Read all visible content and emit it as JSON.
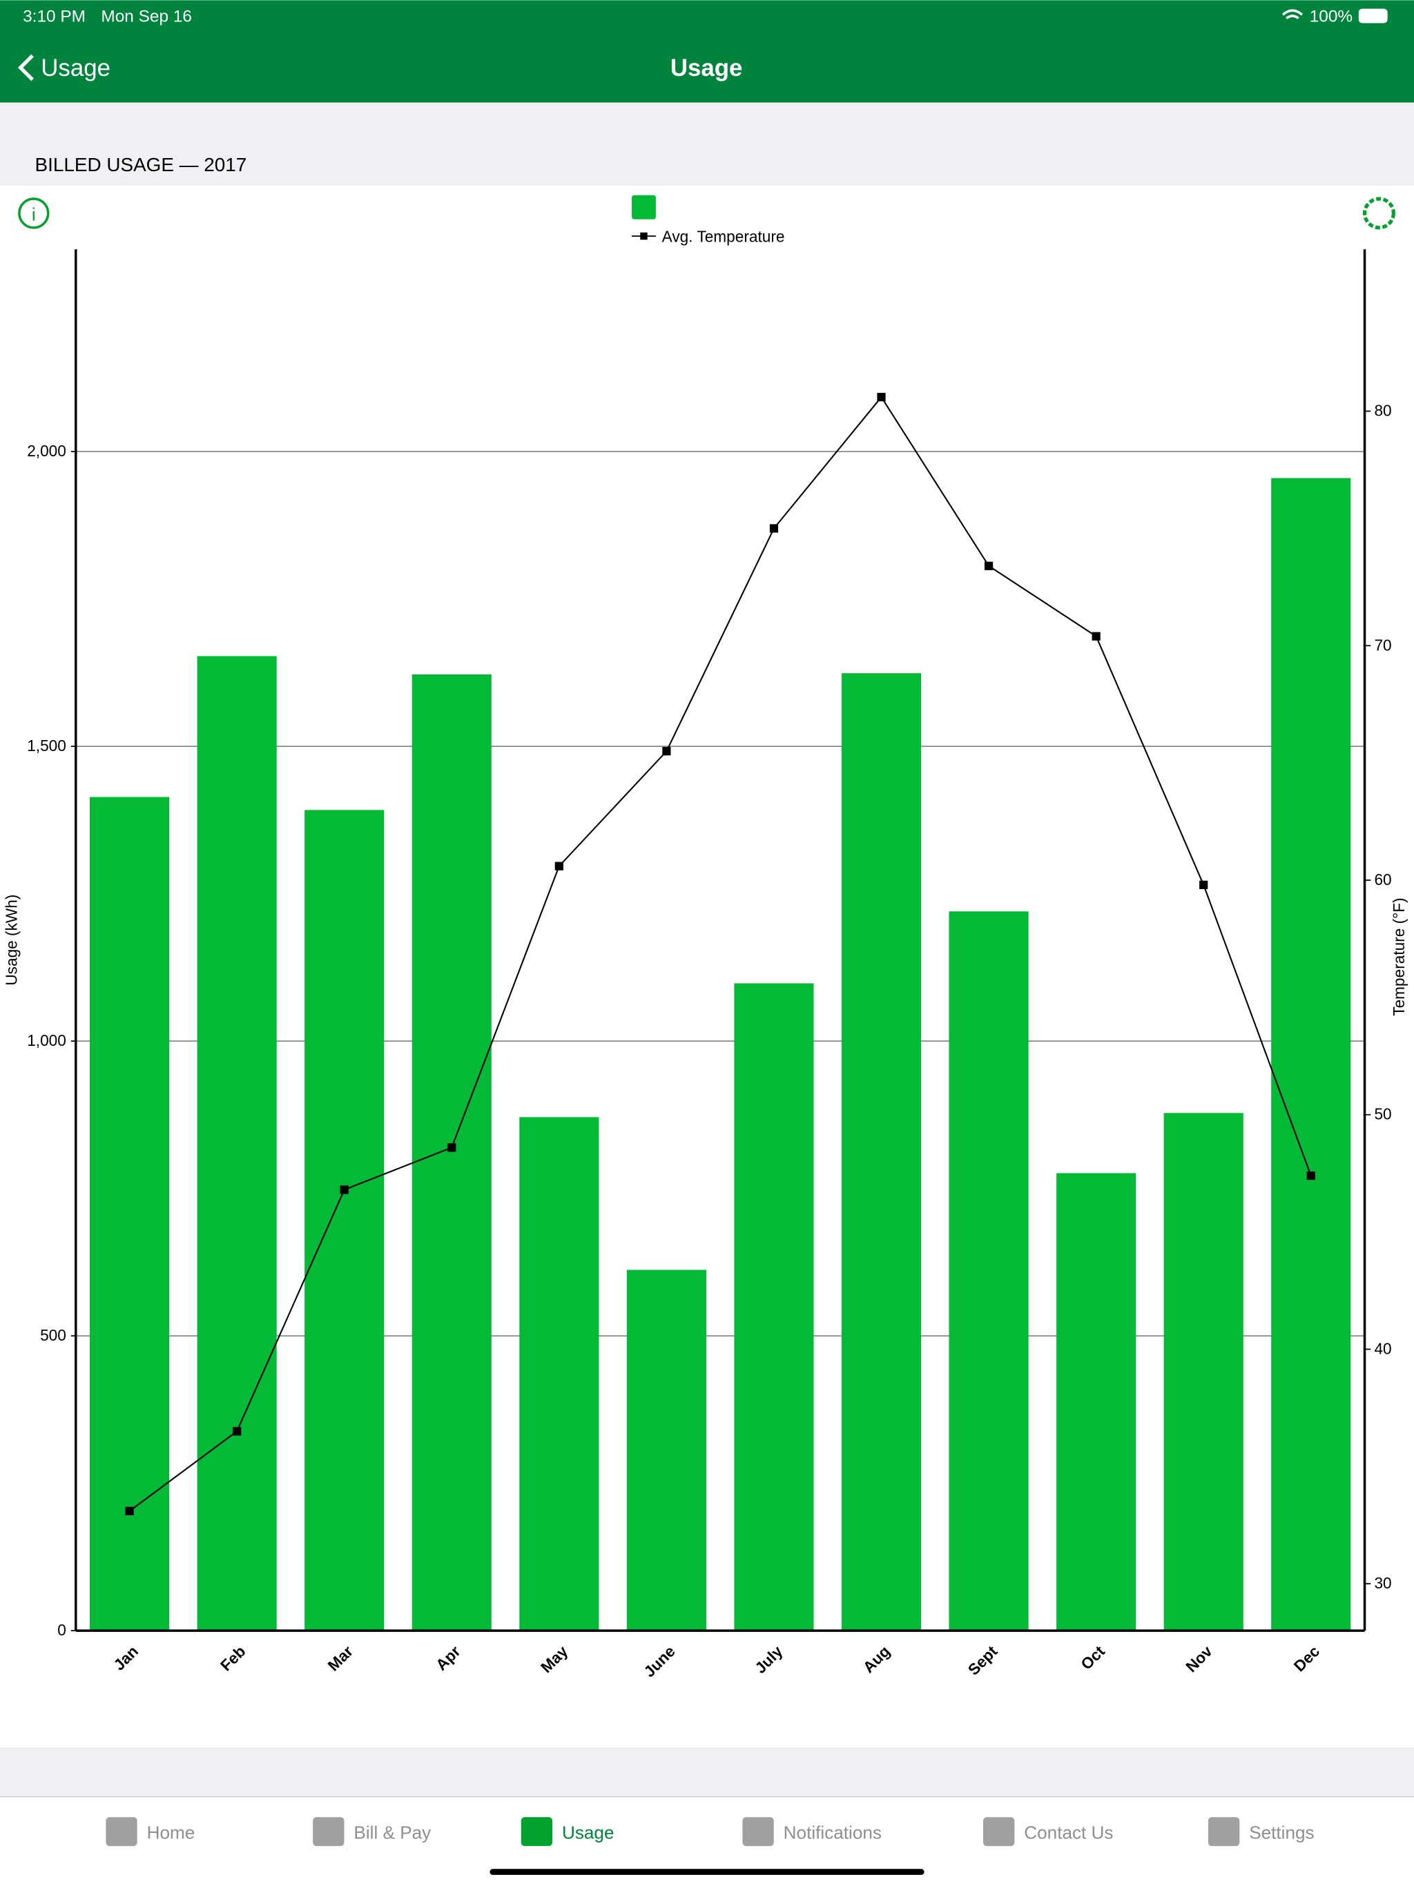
{
  "status_bar": {
    "time": "3:10 PM",
    "date": "Mon Sep 16",
    "battery": "100%"
  },
  "nav": {
    "back": "Usage",
    "title": "Usage"
  },
  "section": "BILLED USAGE — 2017",
  "chart_data": {
    "type": "bar",
    "categories": [
      "Jan",
      "Feb",
      "Mar",
      "Apr",
      "May",
      "June",
      "July",
      "Aug",
      "Sept",
      "Oct",
      "Nov",
      "Dec"
    ],
    "series": [
      {
        "color": "#03b935",
        "values": [
          1414,
          1653,
          1392,
          1622,
          871,
          612,
          1098,
          1624,
          1220,
          776,
          878,
          1955
        ]
      },
      {
        "name": "Avg. Temperature",
        "type": "line",
        "axis": "y2",
        "color": "#000000",
        "values": [
          33.1,
          36.5,
          46.8,
          48.6,
          60.6,
          65.5,
          75.0,
          80.6,
          73.4,
          70.4,
          59.8,
          47.4
        ]
      }
    ],
    "ylabel": "Usage (kWh)",
    "y2label": "Temperature (°F)",
    "ylim": [
      0,
      2343
    ],
    "yticks": [
      0,
      500,
      {
        "value": 1000,
        "label": "1,000"
      },
      {
        "value": 1500,
        "label": "1,500"
      },
      {
        "value": 2000,
        "label": "2,000"
      }
    ],
    "y2lim": [
      28,
      86.9
    ],
    "y2ticks": [
      30,
      40,
      50,
      60,
      70,
      80
    ],
    "grid": true
  },
  "tabs": [
    "Home",
    "Bill & Pay",
    "Usage",
    "Notifications",
    "Contact Us",
    "Settings"
  ]
}
